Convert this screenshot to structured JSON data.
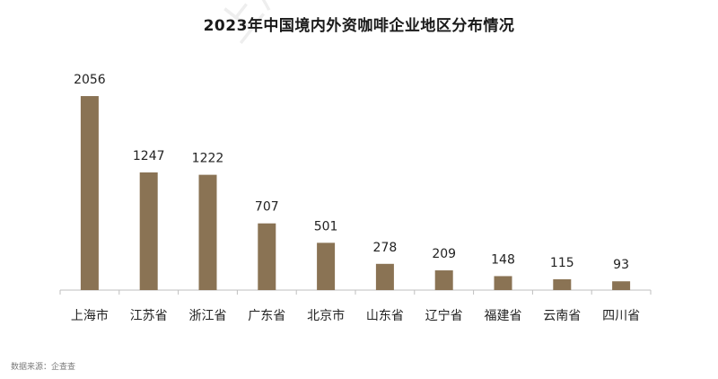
{
  "source_note": "数据来源：企查查",
  "colors": {
    "bar": "#8a7354",
    "axis": "#bfbfbf",
    "label": "#222222"
  },
  "chart_data": {
    "type": "bar",
    "title": "2023年中国境内外资咖啡企业地区分布情况",
    "categories": [
      "上海市",
      "江苏省",
      "浙江省",
      "广东省",
      "北京市",
      "山东省",
      "辽宁省",
      "福建省",
      "云南省",
      "四川省"
    ],
    "values": [
      2056,
      1247,
      1222,
      707,
      501,
      278,
      209,
      148,
      115,
      93
    ],
    "xlabel": "",
    "ylabel": "",
    "ylim": [
      0,
      2056
    ],
    "grid": false,
    "legend": "none",
    "data_labels": true
  }
}
